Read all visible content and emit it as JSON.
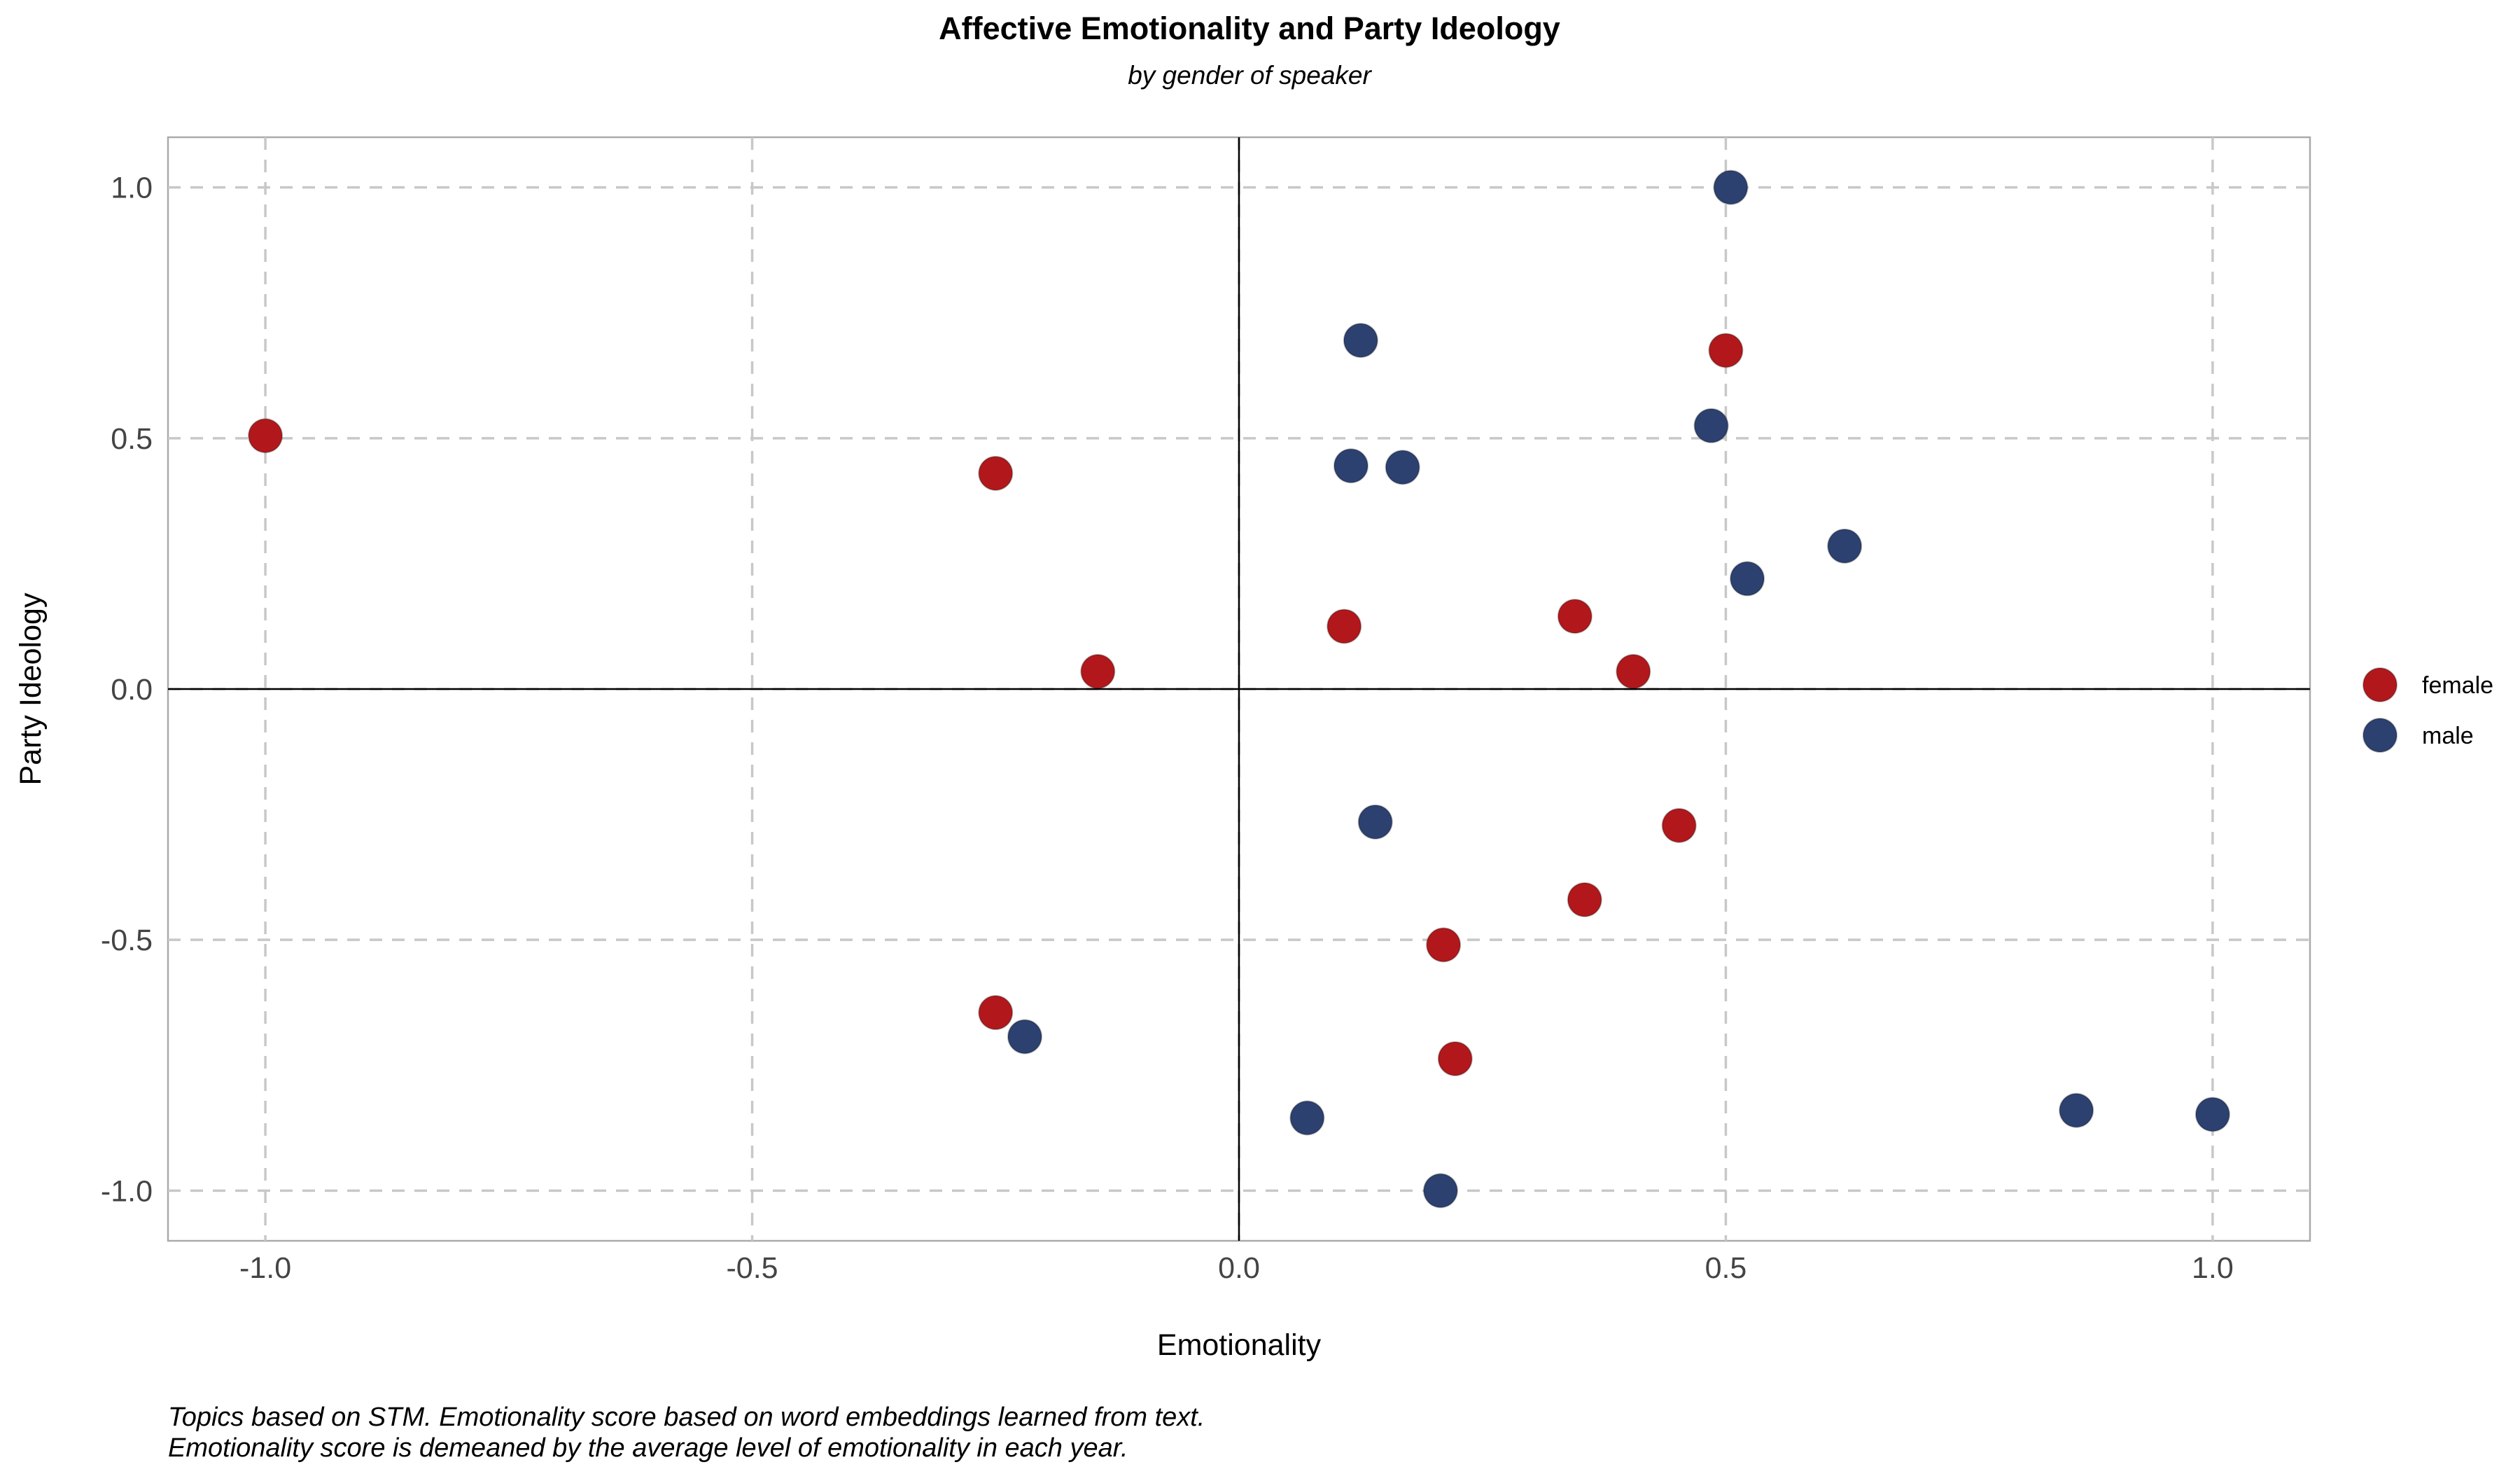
{
  "chart_data": {
    "type": "scatter",
    "title": "Affective Emotionality and Party Ideology",
    "subtitle": "by gender of speaker",
    "xlabel": "Emotionality",
    "ylabel": "Party Ideology",
    "xlim": [
      -1.1,
      1.1
    ],
    "ylim": [
      -1.1,
      1.1
    ],
    "x_ticks": [
      -1.0,
      -0.5,
      0.0,
      0.5,
      1.0
    ],
    "y_ticks": [
      -1.0,
      -0.5,
      0.0,
      0.5,
      1.0
    ],
    "x_tick_labels": [
      "-1.0",
      "-0.5",
      "0.0",
      "0.5",
      "1.0"
    ],
    "y_tick_labels": [
      "-1.0",
      "-0.5",
      "0.0",
      "0.5",
      "1.0"
    ],
    "grid": true,
    "grid_style": "dashed",
    "reference_lines": {
      "x": 0,
      "y": 0
    },
    "legend_position": "right",
    "caption": [
      "Topics based on STM. Emotionality score based on word embeddings learned from text.",
      "Emotionality score is demeaned by the average level of emotionality in each year."
    ],
    "series": [
      {
        "name": "female",
        "color": "#B2181B",
        "points": [
          {
            "x": -1.0,
            "y": 0.505
          },
          {
            "x": -0.25,
            "y": 0.43
          },
          {
            "x": -0.145,
            "y": 0.035
          },
          {
            "x": -0.25,
            "y": -0.645
          },
          {
            "x": 0.108,
            "y": 0.125
          },
          {
            "x": 0.345,
            "y": 0.145
          },
          {
            "x": 0.405,
            "y": 0.035
          },
          {
            "x": 0.5,
            "y": 0.675
          },
          {
            "x": 0.452,
            "y": -0.272
          },
          {
            "x": 0.355,
            "y": -0.42
          },
          {
            "x": 0.21,
            "y": -0.51
          },
          {
            "x": 0.222,
            "y": -0.737
          }
        ]
      },
      {
        "name": "male",
        "color": "#2C4170",
        "points": [
          {
            "x": 0.505,
            "y": 1.0
          },
          {
            "x": 0.125,
            "y": 0.695
          },
          {
            "x": 0.485,
            "y": 0.525
          },
          {
            "x": 0.115,
            "y": 0.445
          },
          {
            "x": 0.168,
            "y": 0.442
          },
          {
            "x": 0.622,
            "y": 0.285
          },
          {
            "x": 0.522,
            "y": 0.22
          },
          {
            "x": 0.14,
            "y": -0.265
          },
          {
            "x": -0.22,
            "y": -0.693
          },
          {
            "x": 0.07,
            "y": -0.855
          },
          {
            "x": 0.207,
            "y": -1.0
          },
          {
            "x": 0.86,
            "y": -0.84
          },
          {
            "x": 1.0,
            "y": -0.848
          }
        ]
      }
    ]
  }
}
